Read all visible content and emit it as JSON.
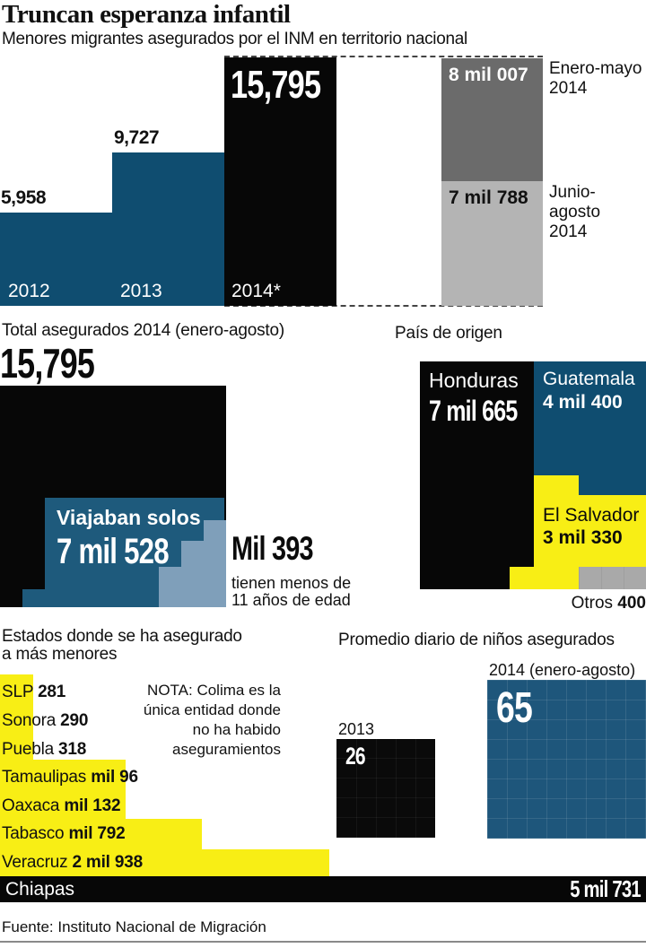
{
  "header": {
    "title": "Truncan esperanza infantil",
    "subtitle": "Menores migrantes asegurados por el INM en territorio nacional"
  },
  "top_chart": {
    "bars": [
      {
        "year": "2012",
        "label": "5,958"
      },
      {
        "year": "2013",
        "label": "9,727"
      },
      {
        "year": "2014*",
        "label": "15,795"
      }
    ],
    "segments": [
      {
        "label": "8 mil 007",
        "period_line1": "Enero-mayo",
        "period_line2": "2014"
      },
      {
        "label": "7 mil 788",
        "period_line1": "Junio-agosto",
        "period_line2": "2014"
      }
    ]
  },
  "total_section": {
    "heading": "Total asegurados 2014 (enero-agosto)",
    "big_number": "15,795",
    "box_label": "Viajaban solos",
    "box_value": "7 mil 528",
    "aside_value": "Mil 393",
    "aside_line1": "tienen menos de",
    "aside_line2": "11 años de edad"
  },
  "origin_section": {
    "heading": "País de origen",
    "honduras_name": "Honduras",
    "honduras_value": "7 mil 665",
    "guatemala_name": "Guatemala",
    "guatemala_value": "4 mil 400",
    "salvador_name": "El Salvador",
    "salvador_value": "3 mil 330",
    "otros_label": "Otros ",
    "otros_value": "400"
  },
  "states_section": {
    "heading_line1": "Estados donde se ha asegurado",
    "heading_line2": "a más menores",
    "rows": [
      {
        "name": "SLP ",
        "value": "281"
      },
      {
        "name": "Sonora ",
        "value": "290"
      },
      {
        "name": "Puebla ",
        "value": "318"
      },
      {
        "name": "Tamaulipas ",
        "value": "mil 96"
      },
      {
        "name": "Oaxaca ",
        "value": "mil 132"
      },
      {
        "name": "Tabasco ",
        "value": "mil 792"
      },
      {
        "name": "Veracruz ",
        "value": "2 mil 938"
      }
    ],
    "chiapas_name": "Chiapas",
    "chiapas_value": "5 mil 731",
    "nota_line1": "NOTA: Colima es la",
    "nota_line2": "única entidad donde",
    "nota_line3": "no ha habido",
    "nota_line4": "aseguramientos"
  },
  "average_section": {
    "heading": "Promedio diario de niños asegurados",
    "label_2014": "2014 (enero-agosto)",
    "value_2014": "65",
    "label_2013": "2013",
    "value_2013": "26"
  },
  "footer": {
    "source": "Fuente: Instituto Nacional de Migración"
  },
  "colors": {
    "blue": "#0f4d70",
    "blue_mid": "#1e5a7c",
    "blue_light": "#7f9fba",
    "blue_box": "#1e567b",
    "yellow": "#f8ee15",
    "gray_dark": "#6b6b6b",
    "gray_light": "#b4b4b4",
    "gray_otros": "#a9a9a9",
    "black": "#070707"
  },
  "chart_data": [
    {
      "type": "bar",
      "title": "Menores migrantes asegurados por el INM en territorio nacional",
      "categories": [
        "2012",
        "2013",
        "2014*"
      ],
      "values": [
        5958,
        9727,
        15795
      ],
      "breakdown_2014": [
        {
          "label": "Enero-mayo 2014",
          "value": 8007
        },
        {
          "label": "Junio-agosto 2014",
          "value": 7788
        }
      ],
      "legend_position": "right",
      "grid": false
    },
    {
      "type": "area",
      "title": "Total asegurados 2014 (enero-agosto)",
      "total": 15795,
      "series": [
        {
          "name": "Viajaban solos",
          "values": [
            7528
          ]
        },
        {
          "name": "Tienen menos de 11 años de edad",
          "values": [
            1393
          ]
        }
      ]
    },
    {
      "type": "pie",
      "title": "País de origen",
      "categories": [
        "Honduras",
        "Guatemala",
        "El Salvador",
        "Otros"
      ],
      "values": [
        7665,
        4400,
        3330,
        400
      ],
      "note": "rendered as mosaic/treemap blocks"
    },
    {
      "type": "bar",
      "title": "Estados donde se ha asegurado a más menores",
      "categories": [
        "SLP",
        "Sonora",
        "Puebla",
        "Tamaulipas",
        "Oaxaca",
        "Tabasco",
        "Veracruz",
        "Chiapas"
      ],
      "values": [
        281,
        290,
        318,
        1096,
        1132,
        1792,
        2938,
        5731
      ],
      "note": "NOTA: Colima es la única entidad donde no ha habido aseguramientos"
    },
    {
      "type": "bar",
      "title": "Promedio diario de niños asegurados",
      "categories": [
        "2013",
        "2014 (enero-agosto)"
      ],
      "values": [
        26,
        65
      ]
    }
  ]
}
